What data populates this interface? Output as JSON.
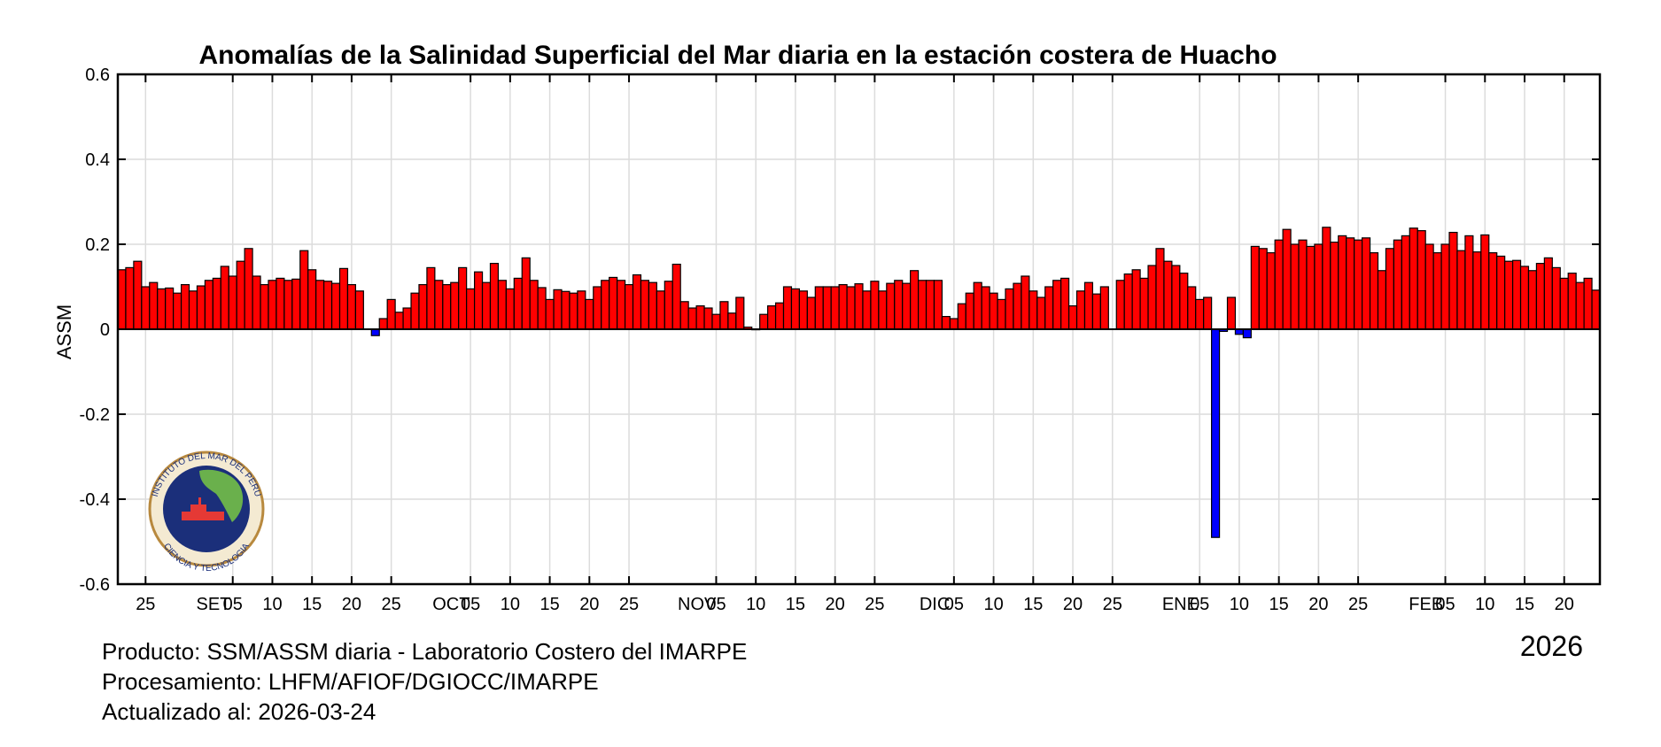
{
  "chart_data": {
    "type": "bar",
    "title": "Anomalías de la Salinidad Superficial del Mar diaria en la estación costera de Huacho",
    "ylabel": "ASSM",
    "ylim": [
      -0.6,
      0.6
    ],
    "yticks": [
      0.6,
      0.4,
      0.2,
      0,
      -0.2,
      -0.4,
      -0.6
    ],
    "ytick_labels": [
      "0.6",
      "0.4",
      "0.2",
      "0",
      "-0.2",
      "-0.4",
      "-0.6"
    ],
    "grid": true,
    "x_start": "2025-08-22",
    "x_end": "2026-03-24",
    "xtick_labels": [
      {
        "date": "2025-08-25",
        "label": "25"
      },
      {
        "date": "2025-09-01",
        "label": "SET"
      },
      {
        "date": "2025-09-05",
        "label": "05"
      },
      {
        "date": "2025-09-10",
        "label": "10"
      },
      {
        "date": "2025-09-15",
        "label": "15"
      },
      {
        "date": "2025-09-20",
        "label": "20"
      },
      {
        "date": "2025-09-25",
        "label": "25"
      },
      {
        "date": "2025-10-01",
        "label": "OCT"
      },
      {
        "date": "2025-10-05",
        "label": "05"
      },
      {
        "date": "2025-10-10",
        "label": "10"
      },
      {
        "date": "2025-10-15",
        "label": "15"
      },
      {
        "date": "2025-10-20",
        "label": "20"
      },
      {
        "date": "2025-10-25",
        "label": "25"
      },
      {
        "date": "2025-11-01",
        "label": "NOV"
      },
      {
        "date": "2025-11-05",
        "label": "05"
      },
      {
        "date": "2025-11-10",
        "label": "10"
      },
      {
        "date": "2025-11-15",
        "label": "15"
      },
      {
        "date": "2025-11-20",
        "label": "20"
      },
      {
        "date": "2025-11-25",
        "label": "25"
      },
      {
        "date": "2025-12-01",
        "label": "DIC"
      },
      {
        "date": "2025-12-05",
        "label": "05"
      },
      {
        "date": "2025-12-10",
        "label": "10"
      },
      {
        "date": "2025-12-15",
        "label": "15"
      },
      {
        "date": "2025-12-20",
        "label": "20"
      },
      {
        "date": "2025-12-25",
        "label": "25"
      },
      {
        "date": "2026-01-01",
        "label": "ENE"
      },
      {
        "date": "2026-01-05",
        "label": "05"
      },
      {
        "date": "2026-01-10",
        "label": "10"
      },
      {
        "date": "2026-01-15",
        "label": "15"
      },
      {
        "date": "2026-01-20",
        "label": "20"
      },
      {
        "date": "2026-01-25",
        "label": "25"
      },
      {
        "date": "2026-02-01",
        "label": "FEB"
      },
      {
        "date": "2026-02-05",
        "label": "05"
      },
      {
        "date": "2026-02-10",
        "label": "10"
      },
      {
        "date": "2026-02-15",
        "label": "15"
      },
      {
        "date": "2026-02-20",
        "label": "20"
      }
    ],
    "positive_color": "#ff0000",
    "negative_color": "#0000ff",
    "values": [
      0.14,
      0.145,
      0.16,
      0.1,
      0.11,
      0.095,
      0.097,
      0.085,
      0.105,
      0.09,
      0.102,
      0.115,
      0.12,
      0.148,
      0.125,
      0.16,
      0.19,
      0.125,
      0.105,
      0.115,
      0.12,
      0.115,
      0.118,
      0.185,
      0.14,
      0.115,
      0.113,
      0.108,
      0.143,
      0.105,
      0.09,
      null,
      -0.015,
      0.025,
      0.07,
      0.04,
      0.05,
      0.085,
      0.105,
      0.145,
      0.115,
      0.105,
      0.11,
      0.145,
      0.095,
      0.135,
      0.11,
      0.155,
      0.115,
      0.095,
      0.12,
      0.168,
      0.115,
      0.098,
      0.07,
      0.093,
      0.089,
      0.085,
      0.09,
      0.07,
      0.1,
      0.115,
      0.122,
      0.115,
      0.105,
      0.128,
      0.115,
      0.11,
      0.09,
      0.113,
      0.153,
      0.065,
      0.05,
      0.055,
      0.05,
      0.035,
      0.065,
      0.038,
      0.075,
      0.005,
      0,
      0.035,
      0.055,
      0.062,
      0.1,
      0.095,
      0.09,
      0.075,
      0.1,
      0.1,
      0.1,
      0.105,
      0.1,
      0.107,
      0.09,
      0.113,
      0.09,
      0.108,
      0.115,
      0.108,
      0.138,
      0.115,
      0.115,
      0.115,
      0.03,
      0.025,
      0.06,
      0.085,
      0.11,
      0.1,
      0.085,
      0.07,
      0.095,
      0.108,
      0.125,
      0.09,
      0.075,
      0.1,
      0.115,
      0.12,
      0.055,
      0.09,
      0.11,
      0.083,
      0.1,
      null,
      0.115,
      0.13,
      0.14,
      0.12,
      0.15,
      0.19,
      0.16,
      0.15,
      0.132,
      0.1,
      0.07,
      0.075,
      -0.49,
      -0.005,
      0.075,
      -0.012,
      -0.02,
      0.195,
      0.19,
      0.18,
      0.21,
      0.235,
      0.2,
      0.21,
      0.195,
      0.2,
      0.24,
      0.205,
      0.22,
      0.215,
      0.21,
      0.215,
      0.18,
      0.138,
      0.19,
      0.21,
      0.22,
      0.238,
      0.232,
      0.2,
      0.18,
      0.2,
      0.228,
      0.185,
      0.22,
      0.182,
      0.222,
      0.18,
      0.172,
      0.16,
      0.162,
      0.148,
      0.138,
      0.155,
      0.168,
      0.145,
      0.12,
      0.132,
      0.11,
      0.12,
      0.092
    ]
  },
  "footer": {
    "product": "Producto: SSM/ASSM diaria - Laboratorio Costero del IMARPE",
    "processing": "Procesamiento: LHFM/AFIOF/DGIOCC/IMARPE",
    "updated": "Actualizado al: 2026-03-24",
    "year": "2026"
  },
  "logo": {
    "text_top": "INSTITUTO DEL MAR DEL PERU",
    "text_bottom": "CIENCIA Y TECNOLOGIA"
  }
}
